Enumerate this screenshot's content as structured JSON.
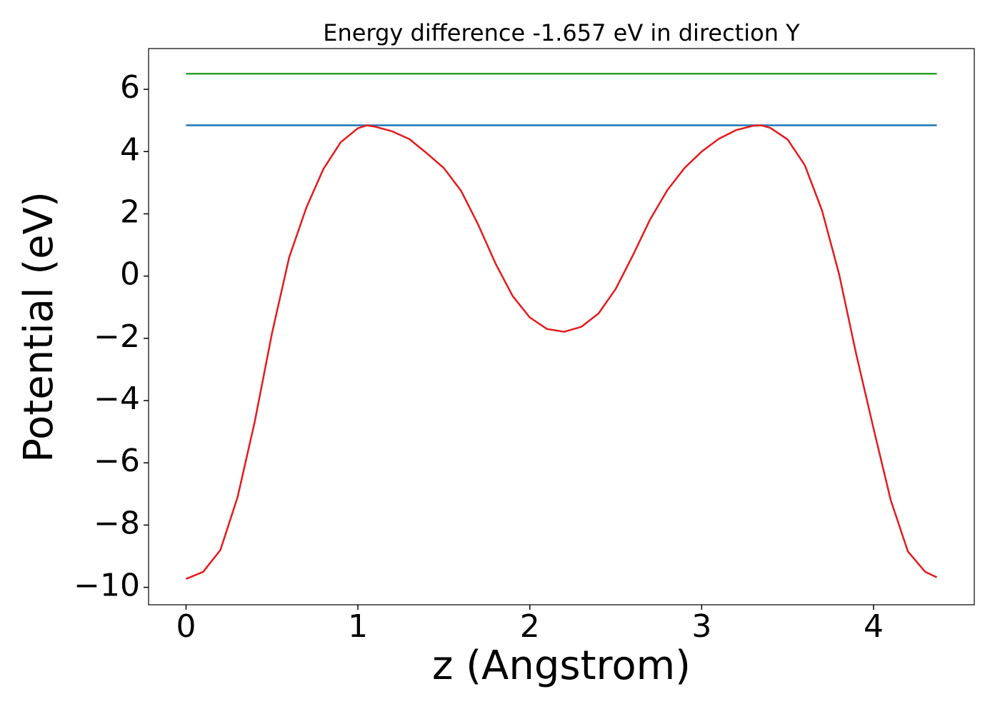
{
  "chart_data": {
    "type": "line",
    "title": "Energy difference -1.657 eV in direction Y",
    "x_label": "z (Angstrom)",
    "y_label": "Potential (eV)",
    "xlim": [
      -0.218,
      4.586
    ],
    "ylim": [
      -10.56,
      7.31
    ],
    "xticks": [
      0,
      1,
      2,
      3,
      4
    ],
    "yticks": [
      {
        "value": -10,
        "label": "−10"
      },
      {
        "value": -8,
        "label": "−8"
      },
      {
        "value": -6,
        "label": "−6"
      },
      {
        "value": -4,
        "label": "−4"
      },
      {
        "value": -2,
        "label": "−2"
      },
      0,
      2,
      4,
      6
    ],
    "grid": false,
    "series": [
      {
        "color": "#2ca02c",
        "x": [
          0,
          4.368
        ],
        "values": [
          6.5,
          6.5
        ]
      },
      {
        "color": "#1f77b4",
        "x": [
          0,
          4.368
        ],
        "values": [
          4.843,
          4.843
        ]
      },
      {
        "color": "#e41a1c",
        "x": [
          0,
          0.1,
          0.2,
          0.3,
          0.4,
          0.5,
          0.6,
          0.7,
          0.8,
          0.9,
          1.0,
          1.05,
          1.1,
          1.2,
          1.3,
          1.4,
          1.5,
          1.6,
          1.7,
          1.8,
          1.9,
          2.0,
          2.1,
          2.2,
          2.3,
          2.4,
          2.5,
          2.6,
          2.7,
          2.8,
          2.9,
          3.0,
          3.1,
          3.2,
          3.3,
          3.35,
          3.4,
          3.5,
          3.6,
          3.7,
          3.8,
          3.9,
          4.0,
          4.1,
          4.2,
          4.3,
          4.368
        ],
        "values": [
          -9.73,
          -9.5,
          -8.8,
          -7.1,
          -4.67,
          -1.84,
          0.6,
          2.2,
          3.45,
          4.3,
          4.75,
          4.84,
          4.8,
          4.65,
          4.4,
          3.95,
          3.47,
          2.74,
          1.65,
          0.41,
          -0.64,
          -1.33,
          -1.7,
          -1.79,
          -1.63,
          -1.2,
          -0.41,
          0.67,
          1.82,
          2.76,
          3.47,
          4.0,
          4.41,
          4.69,
          4.83,
          4.84,
          4.76,
          4.39,
          3.56,
          2.11,
          0.05,
          -2.53,
          -4.9,
          -7.2,
          -8.85,
          -9.5,
          -9.68
        ]
      }
    ]
  }
}
